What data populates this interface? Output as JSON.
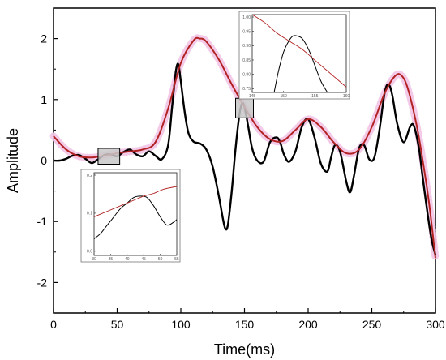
{
  "chart_data": {
    "type": "line",
    "title": "",
    "xlabel": "Time(ms)",
    "ylabel": "Amplitude",
    "xlim": [
      0,
      300
    ],
    "ylim": [
      -2.5,
      2.5
    ],
    "x_ticks": [
      0,
      50,
      100,
      150,
      200,
      250,
      300
    ],
    "y_ticks": [
      -2,
      -1,
      0,
      1,
      2
    ],
    "grid": false,
    "legend": "none",
    "colors": {
      "signal": "#000000",
      "fit": "#b22222",
      "fit_halo": "#f2c4e6",
      "highlight_box": "#c8c8c8"
    },
    "series": [
      {
        "x": [
          0,
          5,
          10,
          15,
          20,
          25,
          30,
          35,
          40,
          45,
          50,
          55,
          60,
          65,
          70,
          75,
          80,
          85,
          90,
          93,
          96,
          98,
          100,
          103,
          106,
          110,
          115,
          120,
          125,
          130,
          133,
          135,
          137,
          140,
          143,
          146,
          148,
          150,
          153,
          156,
          160,
          165,
          170,
          175,
          178,
          181,
          185,
          190,
          195,
          200,
          205,
          210,
          215,
          218,
          221,
          225,
          230,
          233,
          236,
          240,
          244,
          248,
          252,
          256,
          260,
          263,
          266,
          270,
          275,
          280,
          283,
          287,
          290,
          294,
          297,
          300
        ],
        "y": [
          0.0,
          0.0,
          0.03,
          0.08,
          0.09,
          0.03,
          -0.04,
          0.02,
          0.09,
          0.1,
          0.07,
          0.14,
          0.18,
          0.1,
          0.07,
          0.15,
          0.08,
          0.02,
          0.25,
          0.85,
          1.45,
          1.58,
          1.3,
          0.8,
          0.45,
          0.31,
          0.28,
          0.18,
          -0.1,
          -0.6,
          -0.95,
          -1.12,
          -1.05,
          -0.5,
          0.2,
          0.75,
          0.93,
          0.88,
          0.55,
          0.2,
          0.0,
          -0.02,
          0.3,
          0.38,
          0.3,
          0.1,
          -0.02,
          0.15,
          0.55,
          0.68,
          0.38,
          -0.05,
          -0.18,
          0.05,
          0.25,
          0.15,
          -0.35,
          -0.52,
          -0.25,
          0.2,
          0.25,
          0.02,
          0.05,
          0.5,
          1.1,
          1.25,
          1.08,
          0.6,
          0.3,
          0.55,
          0.57,
          0.2,
          -0.28,
          -0.9,
          -1.3,
          -1.55
        ]
      },
      {
        "x": [
          0,
          10,
          20,
          30,
          40,
          50,
          60,
          70,
          80,
          90,
          100,
          110,
          115,
          120,
          130,
          140,
          150,
          160,
          170,
          180,
          190,
          200,
          210,
          220,
          230,
          240,
          250,
          260,
          268,
          273,
          278,
          285,
          290,
          295,
          300
        ],
        "y": [
          0.4,
          0.18,
          0.07,
          0.05,
          0.08,
          0.12,
          0.15,
          0.18,
          0.3,
          0.85,
          1.6,
          1.97,
          2.0,
          1.95,
          1.65,
          1.25,
          0.88,
          0.55,
          0.35,
          0.32,
          0.5,
          0.68,
          0.55,
          0.3,
          0.12,
          0.18,
          0.55,
          1.1,
          1.38,
          1.4,
          1.2,
          0.6,
          0.0,
          -0.7,
          -1.6
        ]
      }
    ],
    "annotations": [
      {
        "type": "highlight_box",
        "x_range": [
          35,
          52
        ],
        "y_range": [
          -0.06,
          0.2
        ],
        "inset": "inset_bottom"
      },
      {
        "type": "highlight_box",
        "x_range": [
          143,
          157
        ],
        "y_range": [
          0.7,
          1.02
        ],
        "inset": "inset_top"
      }
    ]
  },
  "insets": {
    "inset_top": {
      "x_ticks": [
        "145",
        "150",
        "155",
        "160"
      ],
      "y_ticks": [
        "1.00",
        "0.95",
        "0.90",
        "0.85",
        "0.80",
        "0.75"
      ],
      "xlim": [
        145,
        160
      ],
      "ylim": [
        0.72,
        1.01
      ],
      "signal": {
        "x": [
          148.5,
          149.2,
          150,
          150.8,
          151.5,
          152.2,
          153,
          154,
          155,
          156,
          157
        ],
        "y": [
          0.72,
          0.8,
          0.87,
          0.91,
          0.93,
          0.93,
          0.92,
          0.88,
          0.82,
          0.76,
          0.72
        ]
      },
      "fit": {
        "x": [
          145,
          147,
          149,
          151,
          153,
          155,
          157,
          159,
          160
        ],
        "y": [
          1.01,
          0.98,
          0.94,
          0.91,
          0.88,
          0.84,
          0.8,
          0.76,
          0.74
        ]
      }
    },
    "inset_bottom": {
      "x_ticks": [
        "30",
        "35",
        "40",
        "45",
        "50",
        "55"
      ],
      "y_ticks": [
        "0.2",
        "0.1",
        "0.0"
      ],
      "xlim": [
        30,
        55
      ],
      "ylim": [
        -0.06,
        0.24
      ],
      "signal": {
        "x": [
          30,
          32,
          34,
          36,
          38,
          40,
          42,
          44,
          46,
          48,
          50,
          52,
          54,
          55
        ],
        "y": [
          0.0,
          0.02,
          0.05,
          0.08,
          0.11,
          0.13,
          0.15,
          0.155,
          0.15,
          0.12,
          0.08,
          0.05,
          0.06,
          0.07
        ]
      },
      "fit": {
        "x": [
          30,
          33,
          36,
          39,
          42,
          45,
          48,
          51,
          55
        ],
        "y": [
          0.08,
          0.095,
          0.11,
          0.125,
          0.14,
          0.155,
          0.165,
          0.18,
          0.19
        ]
      }
    }
  }
}
